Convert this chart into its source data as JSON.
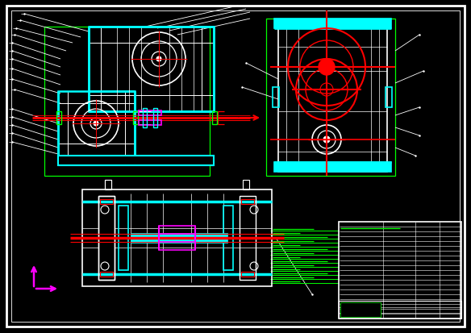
{
  "bg": "#000000",
  "W": "#ffffff",
  "C": "#00ffff",
  "R": "#ff0000",
  "G": "#00ff00",
  "M": "#ff00ff",
  "fig_w": 5.84,
  "fig_h": 4.14,
  "dpi": 100
}
